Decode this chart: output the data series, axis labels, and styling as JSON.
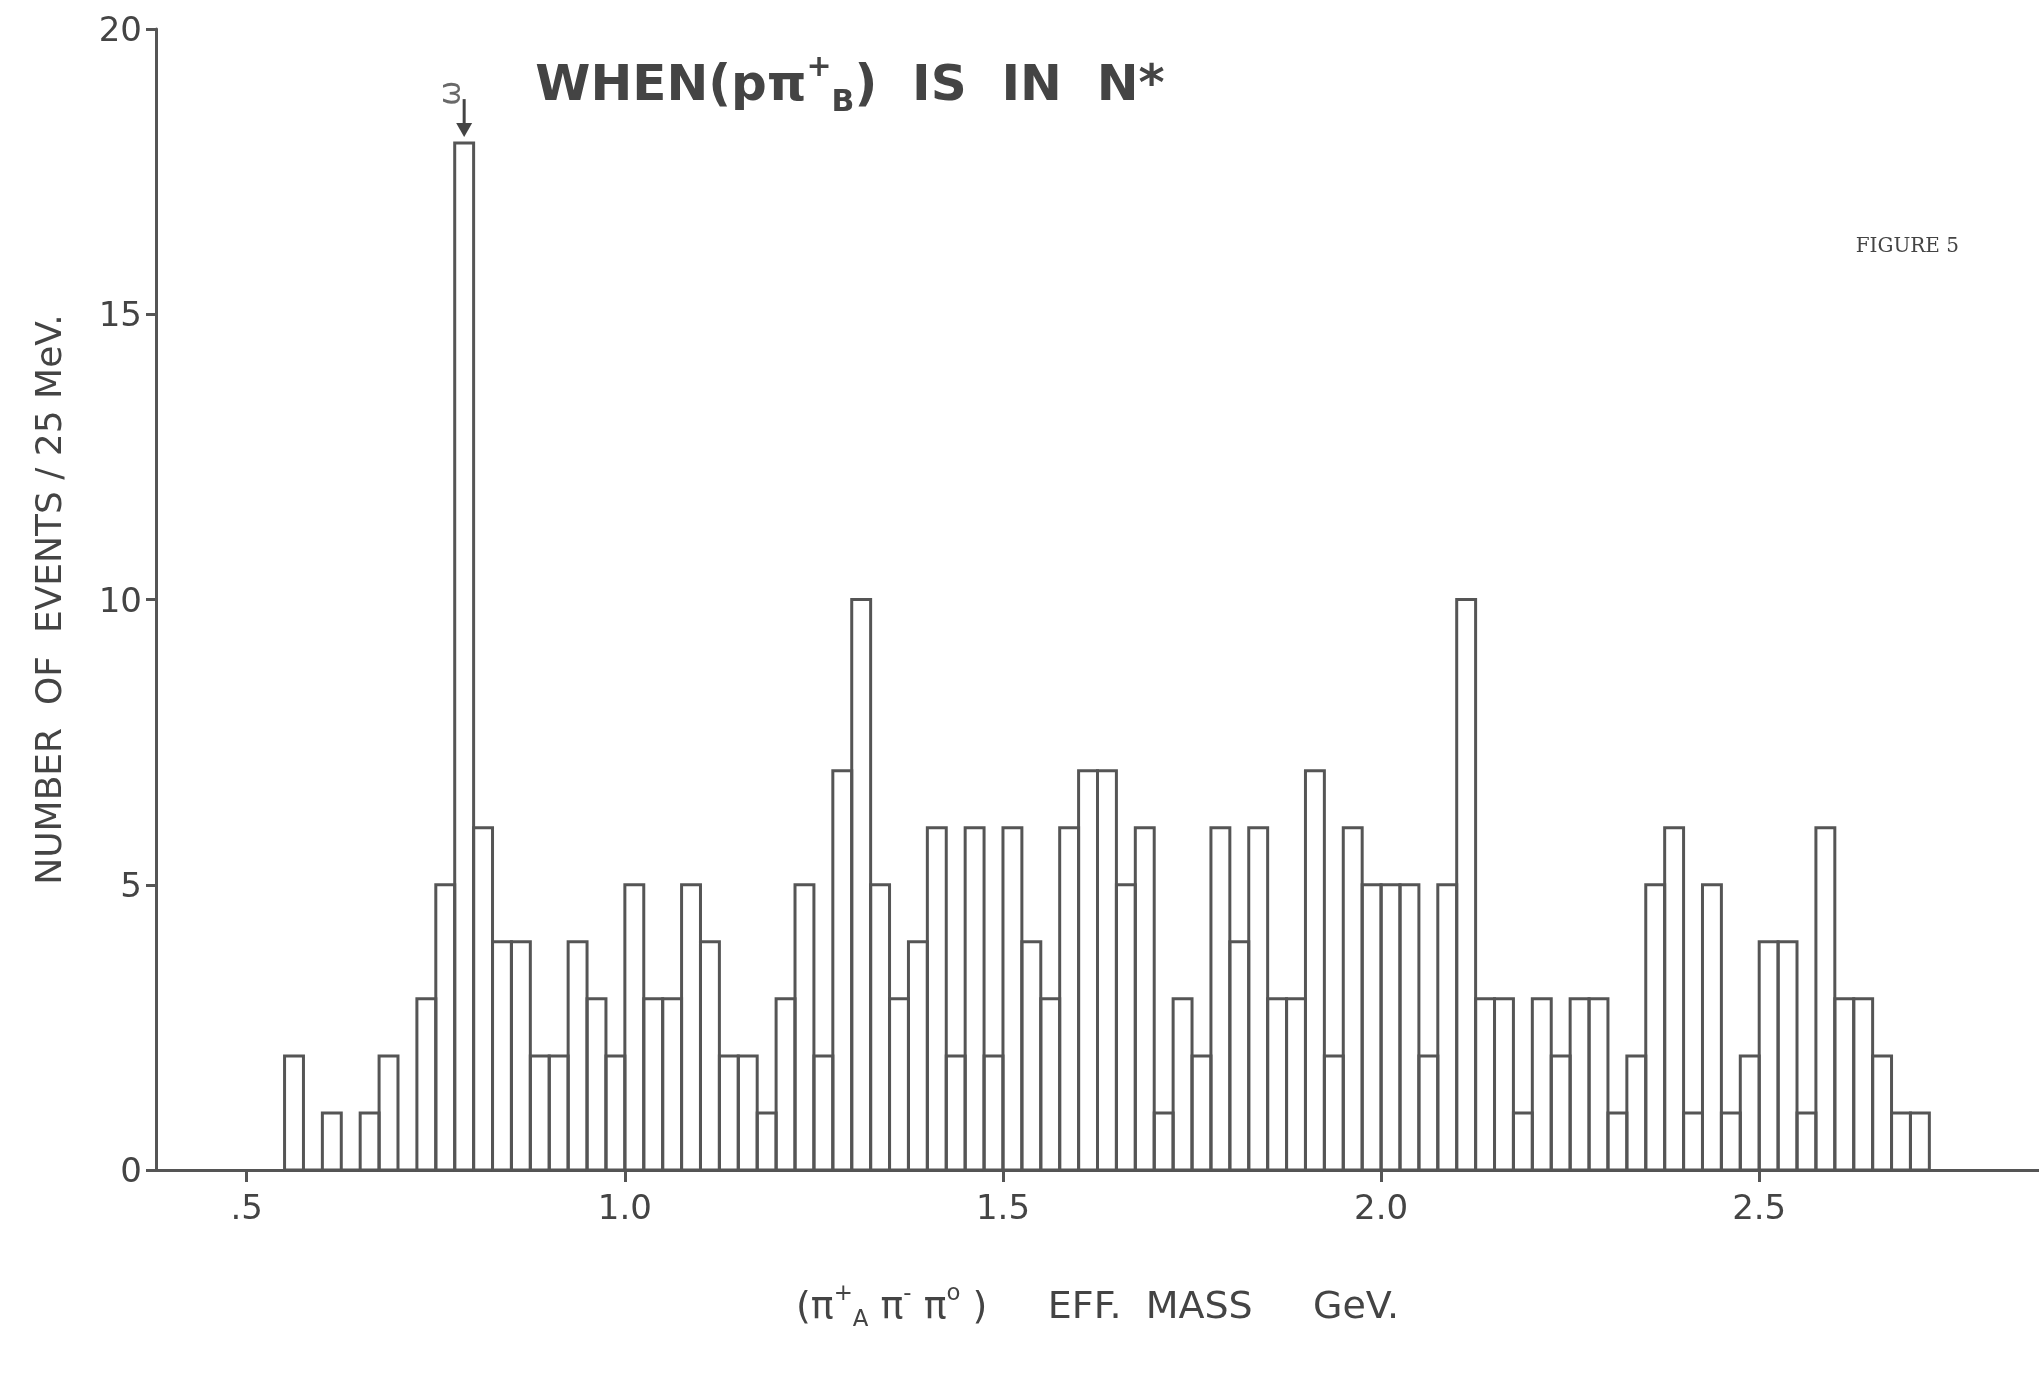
{
  "chart_data": {
    "type": "histogram",
    "title": "WHEN(pπ$^{+}$$_{B}$)  IS  IN  N*",
    "xlabel": "(π$^{+}$$_{A}$ π$^{-}$ π$^{o}$ )     EFF.  MASS     GeV.",
    "ylabel": "NUMBER  OF  EVENTS / 25 MeV.",
    "annotations": [
      {
        "text": "ω",
        "x": 0.7875,
        "y": 18
      },
      "FIGURE 5"
    ],
    "bins": [
      0.55,
      0.575,
      0.6,
      0.625,
      0.65,
      0.675,
      0.7,
      0.725,
      0.75,
      0.775,
      0.8,
      0.825,
      0.85,
      0.875,
      0.9,
      0.925,
      0.95,
      0.975,
      1.0,
      1.025,
      1.05,
      1.075,
      1.1,
      1.125,
      1.15,
      1.175,
      1.2,
      1.225,
      1.25,
      1.275,
      1.3,
      1.325,
      1.35,
      1.375,
      1.4,
      1.425,
      1.45,
      1.475,
      1.5,
      1.525,
      1.55,
      1.575,
      1.6,
      1.625,
      1.65,
      1.675,
      1.7,
      1.725,
      1.75,
      1.775,
      1.8,
      1.825,
      1.85,
      1.875,
      1.9,
      1.925,
      1.95,
      1.975,
      2.0,
      2.025,
      2.05,
      2.075,
      2.1,
      2.125,
      2.15,
      2.175,
      2.2,
      2.225,
      2.25,
      2.275,
      2.3,
      2.325,
      2.35,
      2.375,
      2.4,
      2.425,
      2.45,
      2.475,
      2.5,
      2.525,
      2.55,
      2.575,
      2.6,
      2.625,
      2.65,
      2.675,
      2.7,
      2.725
    ],
    "values": [
      2,
      0,
      1,
      0,
      1,
      2,
      0,
      3,
      5,
      18,
      6,
      4,
      4,
      2,
      2,
      4,
      3,
      2,
      5,
      3,
      3,
      5,
      4,
      2,
      2,
      1,
      3,
      5,
      2,
      7,
      10,
      5,
      3,
      4,
      6,
      2,
      6,
      2,
      6,
      4,
      3,
      6,
      7,
      7,
      5,
      6,
      1,
      3,
      2,
      6,
      4,
      6,
      3,
      3,
      7,
      2,
      6,
      5,
      5,
      5,
      2,
      5,
      10,
      3,
      3,
      1,
      3,
      2,
      3,
      3,
      1,
      2,
      5,
      6,
      1,
      5,
      1,
      2,
      4,
      4,
      1,
      6,
      3,
      3,
      2,
      1,
      1
    ],
    "color": "#555555",
    "xlim": [
      0.38,
      2.87
    ],
    "xticks": [
      {
        "value": 0.5,
        "label": ".5"
      },
      {
        "value": 1.0,
        "label": "1.0"
      },
      {
        "value": 1.5,
        "label": "1.5"
      },
      {
        "value": 2.0,
        "label": "2.0"
      },
      {
        "value": 2.5,
        "label": "2.5"
      }
    ],
    "ylim": [
      0,
      20
    ],
    "yticks": [
      0,
      5,
      10,
      15,
      20
    ],
    "grid": false
  }
}
